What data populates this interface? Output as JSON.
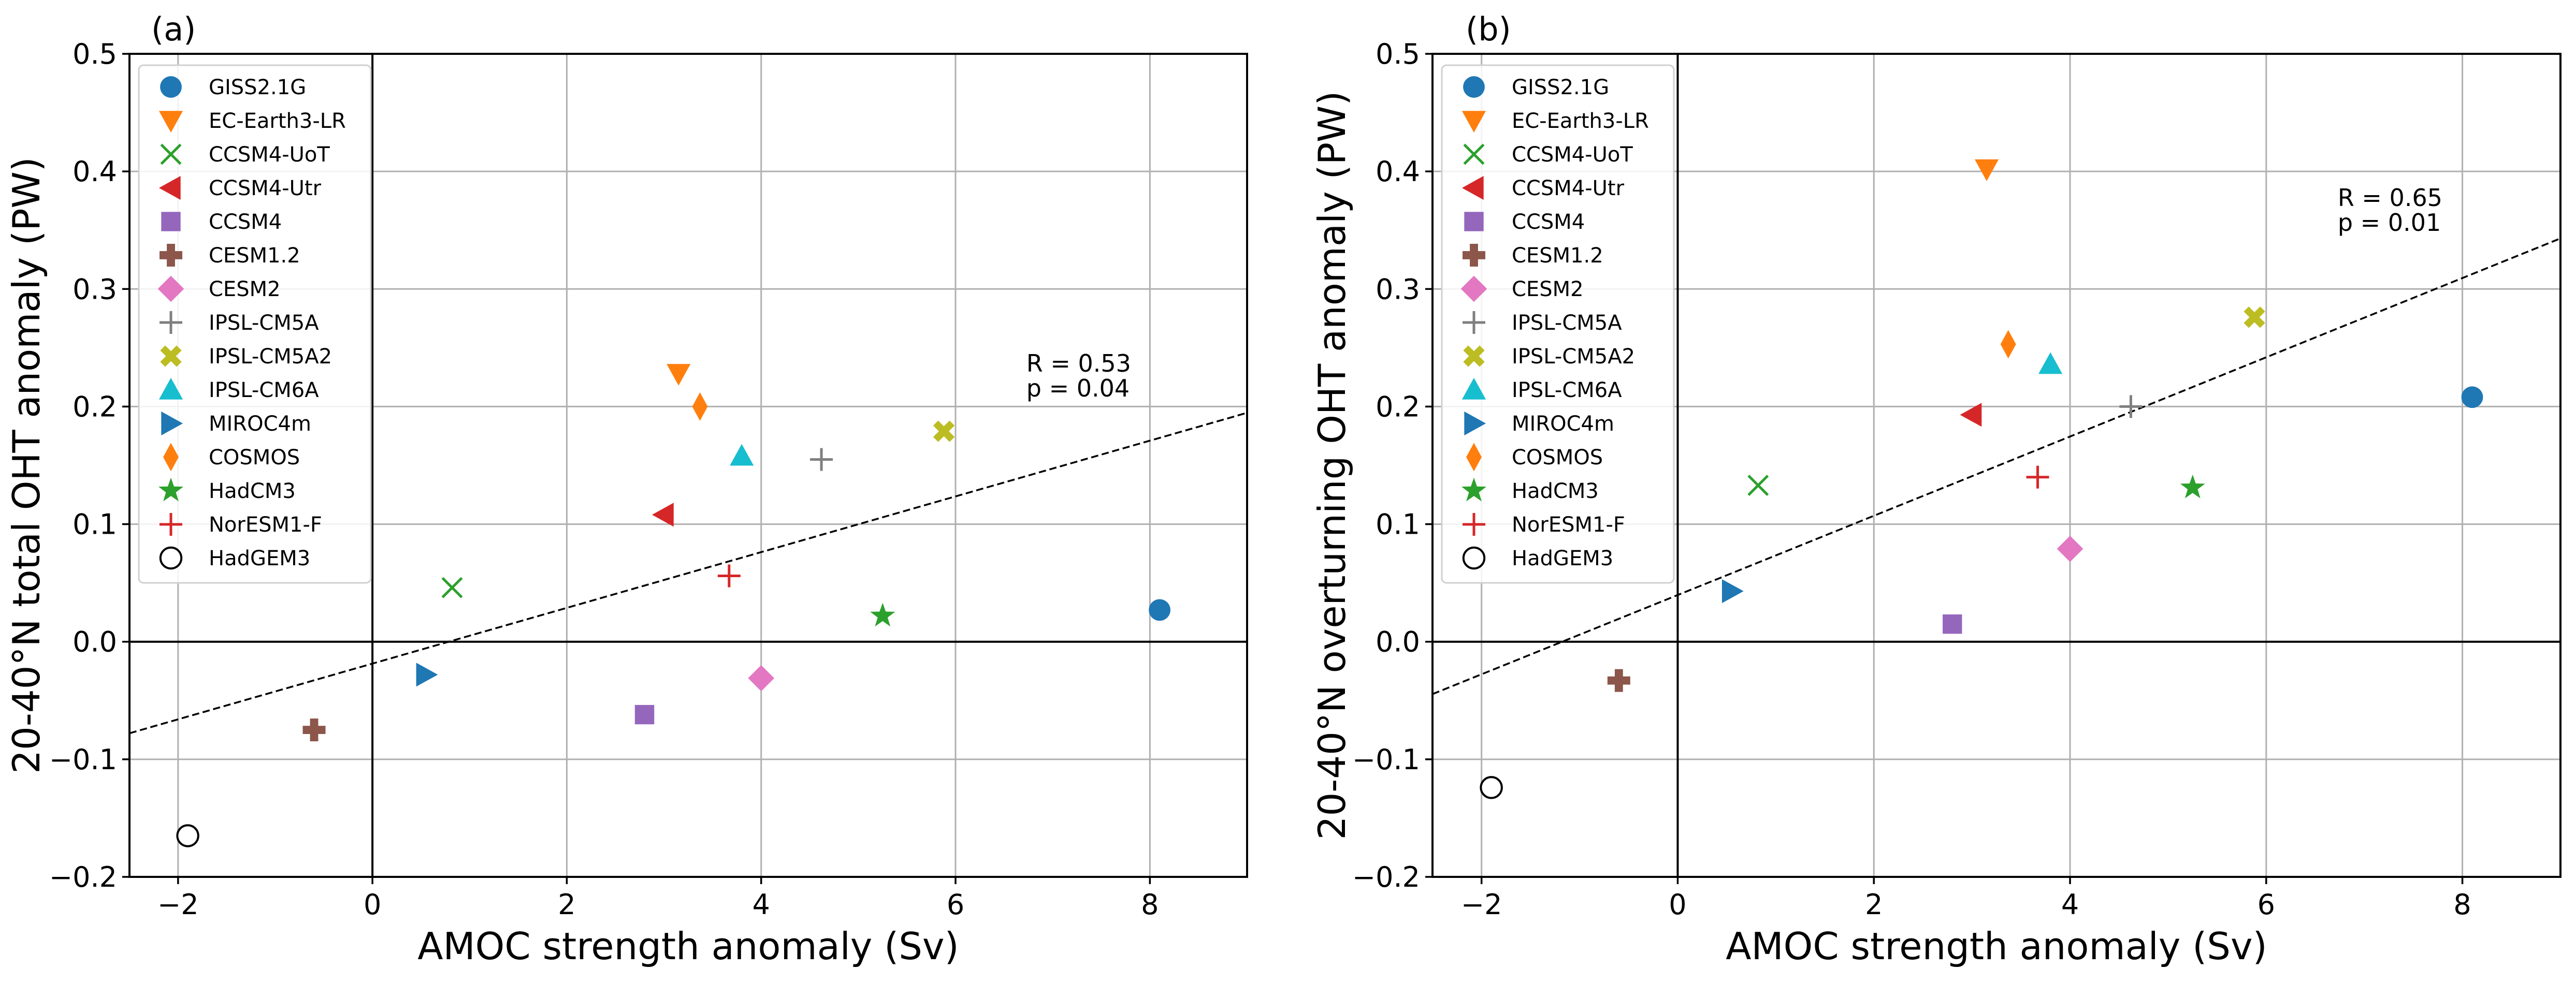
{
  "models": [
    {
      "name": "GISS2.1G",
      "marker": "circle",
      "color": "#1f77b4"
    },
    {
      "name": "EC-Earth3-LR",
      "marker": "triangle-down",
      "color": "#ff7f0e"
    },
    {
      "name": "CCSM4-UoT",
      "marker": "x",
      "color": "#2ca02c"
    },
    {
      "name": "CCSM4-Utr",
      "marker": "triangle-left",
      "color": "#d62728"
    },
    {
      "name": "CCSM4",
      "marker": "square",
      "color": "#9467bd"
    },
    {
      "name": "CESM1.2",
      "marker": "plus-filled",
      "color": "#8c564b"
    },
    {
      "name": "CESM2",
      "marker": "diamond",
      "color": "#e377c2"
    },
    {
      "name": "IPSL-CM5A",
      "marker": "plus",
      "color": "#7f7f7f"
    },
    {
      "name": "IPSL-CM5A2",
      "marker": "x-filled",
      "color": "#bcbd22"
    },
    {
      "name": "IPSL-CM6A",
      "marker": "triangle-up",
      "color": "#17becf"
    },
    {
      "name": "MIROC4m",
      "marker": "triangle-right",
      "color": "#1f77b4"
    },
    {
      "name": "COSMOS",
      "marker": "thin-diamond",
      "color": "#ff7f0e"
    },
    {
      "name": "HadCM3",
      "marker": "star",
      "color": "#2ca02c"
    },
    {
      "name": "NorESM1-F",
      "marker": "plus",
      "color": "#d62728"
    },
    {
      "name": "HadGEM3",
      "marker": "open-circle",
      "color": "#000000"
    }
  ],
  "chart_data": [
    {
      "type": "scatter",
      "panel_label": "(a)",
      "xlabel": "AMOC strength anomaly (Sv)",
      "ylabel": "20-40°N total OHT anomaly (PW)",
      "xlim": [
        -2.5,
        9
      ],
      "ylim": [
        -0.2,
        0.5
      ],
      "xticks": [
        -2,
        0,
        2,
        4,
        6,
        8
      ],
      "yticks": [
        -0.2,
        -0.1,
        0.0,
        0.1,
        0.2,
        0.3,
        0.4,
        0.5
      ],
      "xtick_labels": [
        "−2",
        "0",
        "2",
        "4",
        "6",
        "8"
      ],
      "ytick_labels": [
        "−0.2",
        "−0.1",
        "0.0",
        "0.1",
        "0.2",
        "0.3",
        "0.4",
        "0.5"
      ],
      "grid": true,
      "legend_position": "top-left",
      "points": [
        {
          "model": "GISS2.1G",
          "x": 8.1,
          "y": 0.027
        },
        {
          "model": "EC-Earth3-LR",
          "x": 3.15,
          "y": 0.228
        },
        {
          "model": "CCSM4-UoT",
          "x": 0.82,
          "y": 0.046
        },
        {
          "model": "CCSM4-Utr",
          "x": 3.0,
          "y": 0.108
        },
        {
          "model": "CCSM4",
          "x": 2.8,
          "y": -0.062
        },
        {
          "model": "CESM1.2",
          "x": -0.6,
          "y": -0.075
        },
        {
          "model": "CESM2",
          "x": 4.0,
          "y": -0.031
        },
        {
          "model": "IPSL-CM5A",
          "x": 4.62,
          "y": 0.155
        },
        {
          "model": "IPSL-CM5A2",
          "x": 5.88,
          "y": 0.179
        },
        {
          "model": "IPSL-CM6A",
          "x": 3.8,
          "y": 0.158
        },
        {
          "model": "MIROC4m",
          "x": 0.55,
          "y": -0.028
        },
        {
          "model": "COSMOS",
          "x": 3.37,
          "y": 0.2
        },
        {
          "model": "HadCM3",
          "x": 5.25,
          "y": 0.022
        },
        {
          "model": "NorESM1-F",
          "x": 3.67,
          "y": 0.056
        },
        {
          "model": "HadGEM3",
          "x": -1.9,
          "y": -0.165
        }
      ],
      "regression": {
        "slope": 0.0237,
        "intercept": -0.0186,
        "style": "dashed"
      },
      "stats": {
        "r": "R = 0.53",
        "p": "p = 0.04"
      }
    },
    {
      "type": "scatter",
      "panel_label": "(b)",
      "xlabel": "AMOC strength anomaly (Sv)",
      "ylabel": "20-40°N overturning OHT anomaly (PW)",
      "xlim": [
        -2.5,
        9
      ],
      "ylim": [
        -0.2,
        0.5
      ],
      "xticks": [
        -2,
        0,
        2,
        4,
        6,
        8
      ],
      "yticks": [
        -0.2,
        -0.1,
        0.0,
        0.1,
        0.2,
        0.3,
        0.4,
        0.5
      ],
      "xtick_labels": [
        "−2",
        "0",
        "2",
        "4",
        "6",
        "8"
      ],
      "ytick_labels": [
        "−0.2",
        "−0.1",
        "0.0",
        "0.1",
        "0.2",
        "0.3",
        "0.4",
        "0.5"
      ],
      "grid": true,
      "legend_position": "top-left",
      "points": [
        {
          "model": "GISS2.1G",
          "x": 8.1,
          "y": 0.208
        },
        {
          "model": "EC-Earth3-LR",
          "x": 3.15,
          "y": 0.402
        },
        {
          "model": "CCSM4-UoT",
          "x": 0.82,
          "y": 0.133
        },
        {
          "model": "CCSM4-Utr",
          "x": 3.0,
          "y": 0.193
        },
        {
          "model": "CCSM4",
          "x": 2.8,
          "y": 0.015
        },
        {
          "model": "CESM1.2",
          "x": -0.6,
          "y": -0.033
        },
        {
          "model": "CESM2",
          "x": 4.0,
          "y": 0.079
        },
        {
          "model": "IPSL-CM5A",
          "x": 4.62,
          "y": 0.2
        },
        {
          "model": "IPSL-CM5A2",
          "x": 5.88,
          "y": 0.276
        },
        {
          "model": "IPSL-CM6A",
          "x": 3.8,
          "y": 0.236
        },
        {
          "model": "MIROC4m",
          "x": 0.55,
          "y": 0.043
        },
        {
          "model": "COSMOS",
          "x": 3.37,
          "y": 0.253
        },
        {
          "model": "HadCM3",
          "x": 5.25,
          "y": 0.131
        },
        {
          "model": "NorESM1-F",
          "x": 3.67,
          "y": 0.14
        },
        {
          "model": "HadGEM3",
          "x": -1.9,
          "y": -0.124
        }
      ],
      "regression": {
        "slope": 0.0337,
        "intercept": 0.0397,
        "style": "dashed"
      },
      "stats": {
        "r": "R = 0.65",
        "p": "p = 0.01"
      }
    }
  ]
}
